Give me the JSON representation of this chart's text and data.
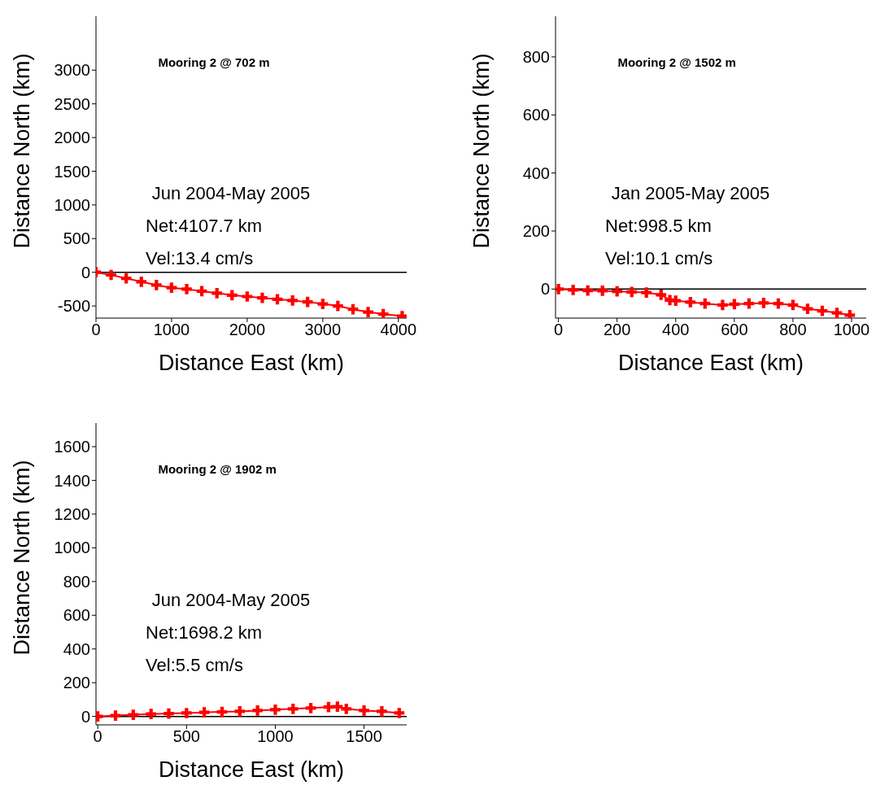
{
  "chart_data": [
    {
      "type": "line",
      "title": "Mooring 2 @ 702 m",
      "xlabel": "Distance East (km)",
      "ylabel": "Distance North (km)",
      "annotations": [
        "Jun 2004-May 2005",
        "Net:4107.7 km",
        "Vel:13.4 cm/s"
      ],
      "xlim": [
        0,
        4110
      ],
      "ylim": [
        -680,
        3800
      ],
      "xticks": [
        0,
        1000,
        2000,
        3000,
        4000
      ],
      "yticks": [
        -500,
        0,
        500,
        1000,
        1500,
        2000,
        2500,
        3000
      ],
      "marker": "cross",
      "grid": false,
      "legend": false,
      "ref_lines": [
        {
          "axis": "y",
          "value": 0,
          "color": "#000000"
        }
      ],
      "series": [
        {
          "color": "#ff0000",
          "x": [
            0,
            200,
            400,
            600,
            800,
            1000,
            1200,
            1400,
            1600,
            1800,
            2000,
            2200,
            2400,
            2600,
            2800,
            3000,
            3200,
            3400,
            3600,
            3800,
            4050
          ],
          "values": [
            0,
            -40,
            -90,
            -140,
            -190,
            -230,
            -250,
            -280,
            -310,
            -340,
            -360,
            -380,
            -400,
            -420,
            -440,
            -470,
            -500,
            -550,
            -590,
            -620,
            -650
          ]
        }
      ]
    },
    {
      "type": "line",
      "title": "Mooring 2 @ 1502 m",
      "xlabel": "Distance East (km)",
      "ylabel": "Distance North (km)",
      "annotations": [
        "Jan 2005-May 2005",
        "Net:998.5 km",
        "Vel:10.1 cm/s"
      ],
      "xlim": [
        -10,
        1050
      ],
      "ylim": [
        -100,
        940
      ],
      "xticks": [
        0,
        200,
        400,
        600,
        800,
        1000
      ],
      "yticks": [
        0,
        200,
        400,
        600,
        800
      ],
      "marker": "cross",
      "grid": false,
      "legend": false,
      "ref_lines": [
        {
          "axis": "y",
          "value": 0,
          "color": "#000000"
        }
      ],
      "series": [
        {
          "color": "#ff0000",
          "x": [
            0,
            50,
            100,
            150,
            200,
            250,
            300,
            350,
            380,
            400,
            450,
            500,
            560,
            600,
            650,
            700,
            750,
            800,
            850,
            900,
            950,
            994
          ],
          "values": [
            0,
            -3,
            -5,
            -6,
            -8,
            -10,
            -12,
            -20,
            -38,
            -40,
            -45,
            -50,
            -55,
            -52,
            -50,
            -48,
            -50,
            -55,
            -68,
            -75,
            -82,
            -90
          ]
        }
      ]
    },
    {
      "type": "line",
      "title": "Mooring 2 @ 1902 m",
      "xlabel": "Distance East (km)",
      "ylabel": "Distance North (km)",
      "annotations": [
        "Jun 2004-May 2005",
        "Net:1698.2 km",
        "Vel:5.5 cm/s"
      ],
      "xlim": [
        -10,
        1740
      ],
      "ylim": [
        -50,
        1740
      ],
      "xticks": [
        0,
        500,
        1000,
        1500
      ],
      "yticks": [
        0,
        200,
        400,
        600,
        800,
        1000,
        1200,
        1400,
        1600
      ],
      "marker": "cross",
      "grid": false,
      "legend": false,
      "ref_lines": [
        {
          "axis": "y",
          "value": 0,
          "color": "#000000"
        }
      ],
      "series": [
        {
          "color": "#ff0000",
          "x": [
            0,
            100,
            200,
            300,
            400,
            500,
            600,
            700,
            800,
            900,
            1000,
            1100,
            1200,
            1300,
            1350,
            1400,
            1500,
            1600,
            1698
          ],
          "values": [
            0,
            5,
            10,
            14,
            17,
            20,
            24,
            27,
            30,
            35,
            40,
            45,
            50,
            55,
            58,
            45,
            35,
            30,
            20
          ]
        }
      ]
    }
  ]
}
